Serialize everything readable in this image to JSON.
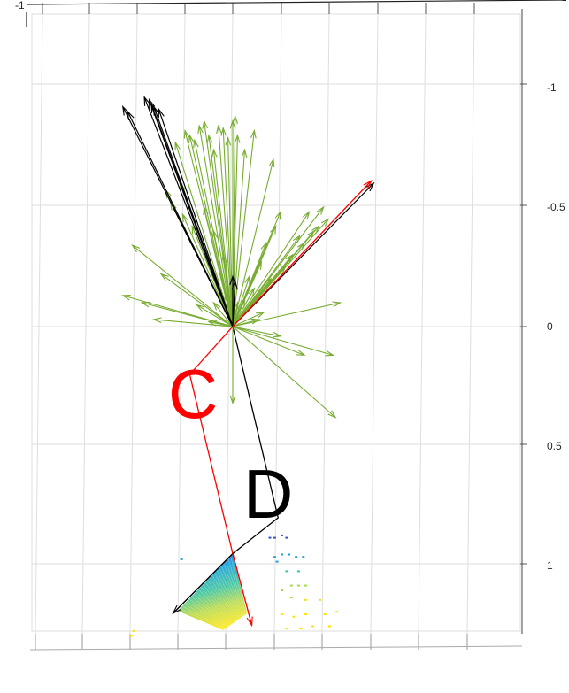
{
  "chart_data": {
    "type": "scatter",
    "subtype": "3d-quiver-with-point-cloud",
    "title": "",
    "xlabel": "",
    "ylabel": "",
    "y_ticks": [
      {
        "value": -1,
        "label": "-1"
      },
      {
        "value": -0.5,
        "label": "-0.5"
      },
      {
        "value": 0,
        "label": "0"
      },
      {
        "value": 0.5,
        "label": "0.5"
      },
      {
        "value": 1,
        "label": "1"
      }
    ],
    "corner_tick_label": "-1",
    "grid": true,
    "annotations": [
      {
        "text": "C",
        "color": "#ff0000"
      },
      {
        "text": "D",
        "color": "#000000"
      }
    ],
    "colors": {
      "normals": "#77ac30",
      "axis_red": "#ff0000",
      "axis_black": "#000000",
      "grid": "#dedede",
      "cloud_gradient": [
        "#3a4fc0",
        "#1ea0d8",
        "#35c6a0",
        "#a8d84a",
        "#f0e030",
        "#ffe600"
      ]
    },
    "origin": {
      "x": 0,
      "y": 0
    },
    "normals": [
      {
        "x": -0.26,
        "y": -0.52
      },
      {
        "x": -0.22,
        "y": -0.6
      },
      {
        "x": -0.24,
        "y": -0.77
      },
      {
        "x": -0.2,
        "y": -0.82
      },
      {
        "x": -0.18,
        "y": -0.8
      },
      {
        "x": -0.16,
        "y": -0.78
      },
      {
        "x": -0.14,
        "y": -0.84
      },
      {
        "x": -0.12,
        "y": -0.86
      },
      {
        "x": -0.1,
        "y": -0.8
      },
      {
        "x": -0.08,
        "y": -0.74
      },
      {
        "x": -0.06,
        "y": -0.84
      },
      {
        "x": -0.04,
        "y": -0.83
      },
      {
        "x": -0.02,
        "y": -0.79
      },
      {
        "x": 0.0,
        "y": -0.86
      },
      {
        "x": 0.01,
        "y": -0.88
      },
      {
        "x": 0.02,
        "y": -0.8
      },
      {
        "x": 0.05,
        "y": -0.74
      },
      {
        "x": 0.09,
        "y": -0.82
      },
      {
        "x": 0.17,
        "y": -0.7
      },
      {
        "x": -0.28,
        "y": -0.57
      },
      {
        "x": -0.21,
        "y": -0.47
      },
      {
        "x": -0.17,
        "y": -0.42
      },
      {
        "x": -0.12,
        "y": -0.5
      },
      {
        "x": -0.08,
        "y": -0.4
      },
      {
        "x": -0.04,
        "y": -0.3
      },
      {
        "x": -0.42,
        "y": -0.34
      },
      {
        "x": -0.3,
        "y": -0.22
      },
      {
        "x": -0.38,
        "y": -0.1
      },
      {
        "x": -0.46,
        "y": -0.13
      },
      {
        "x": -0.33,
        "y": -0.03
      },
      {
        "x": -0.15,
        "y": -0.09
      },
      {
        "x": -0.1,
        "y": -0.02
      },
      {
        "x": -0.08,
        "y": -0.1
      },
      {
        "x": -0.03,
        "y": -0.14
      },
      {
        "x": -0.01,
        "y": -0.08
      },
      {
        "x": 0.02,
        "y": -0.1
      },
      {
        "x": 0.05,
        "y": -0.11
      },
      {
        "x": 0.09,
        "y": -0.16
      },
      {
        "x": 0.07,
        "y": -0.21
      },
      {
        "x": 0.13,
        "y": -0.06
      },
      {
        "x": 0.11,
        "y": -0.03
      },
      {
        "x": 0.0,
        "y": 0.32
      },
      {
        "x": 0.3,
        "y": 0.12
      },
      {
        "x": 0.43,
        "y": 0.38
      },
      {
        "x": 0.2,
        "y": 0.04
      },
      {
        "x": 0.42,
        "y": 0.12
      },
      {
        "x": 0.45,
        "y": -0.1
      },
      {
        "x": 0.4,
        "y": -0.45
      },
      {
        "x": 0.38,
        "y": -0.5
      },
      {
        "x": 0.36,
        "y": -0.42
      },
      {
        "x": 0.32,
        "y": -0.48
      },
      {
        "x": 0.34,
        "y": -0.4
      },
      {
        "x": 0.3,
        "y": -0.35
      },
      {
        "x": 0.28,
        "y": -0.38
      },
      {
        "x": 0.25,
        "y": -0.3
      },
      {
        "x": 0.22,
        "y": -0.25
      },
      {
        "x": 0.16,
        "y": -0.2
      },
      {
        "x": 0.2,
        "y": -0.48
      },
      {
        "x": 0.18,
        "y": -0.42
      },
      {
        "x": 0.14,
        "y": -0.35
      },
      {
        "x": 0.12,
        "y": -0.27
      }
    ],
    "axis_vectors": [
      {
        "color": "black",
        "x": -0.46,
        "y": -0.92
      },
      {
        "color": "black",
        "x": -0.44,
        "y": -0.9
      },
      {
        "color": "black",
        "x": -0.37,
        "y": -0.96
      },
      {
        "color": "black",
        "x": -0.35,
        "y": -0.95
      },
      {
        "color": "black",
        "x": -0.34,
        "y": -0.93
      },
      {
        "color": "black",
        "x": -0.33,
        "y": -0.92
      },
      {
        "color": "black",
        "x": -0.31,
        "y": -0.91
      },
      {
        "color": "black",
        "x": 0.0,
        "y": -0.21
      },
      {
        "color": "black",
        "x": 0.01,
        "y": -0.19
      },
      {
        "color": "black",
        "x": 0.59,
        "y": -0.6
      },
      {
        "color": "red",
        "x": 0.58,
        "y": -0.61
      }
    ],
    "frame_C": [
      {
        "x": 0.0,
        "y": 0.0
      },
      {
        "x": -0.18,
        "y": 0.2
      },
      {
        "x": 0.0,
        "y": 0.95
      }
    ],
    "frame_D": [
      {
        "x": 0.0,
        "y": 0.0
      },
      {
        "x": 0.19,
        "y": 0.8
      },
      {
        "x": 0.0,
        "y": 0.95
      }
    ],
    "cloud_axes": [
      {
        "color": "black",
        "x1": 0.0,
        "y1": 0.95,
        "x2": -0.25,
        "y2": 1.2
      },
      {
        "color": "red",
        "x1": 0.0,
        "y1": 0.95,
        "x2": 0.08,
        "y2": 1.25
      }
    ],
    "point_cloud_patch": {
      "corners": [
        {
          "x": 0.0,
          "y": 0.95
        },
        {
          "x": 0.06,
          "y": 1.2
        },
        {
          "x": -0.04,
          "y": 1.27
        },
        {
          "x": -0.23,
          "y": 1.19
        }
      ]
    },
    "scattered_points": [
      {
        "x": 0.15,
        "y": 0.88
      },
      {
        "x": 0.17,
        "y": 0.88
      },
      {
        "x": 0.2,
        "y": 0.87
      },
      {
        "x": 0.22,
        "y": 0.88
      },
      {
        "x": 0.2,
        "y": 0.95
      },
      {
        "x": 0.23,
        "y": 0.95
      },
      {
        "x": 0.26,
        "y": 0.96
      },
      {
        "x": 0.29,
        "y": 0.96
      },
      {
        "x": 0.17,
        "y": 0.96
      },
      {
        "x": 0.18,
        "y": 0.98
      },
      {
        "x": 0.22,
        "y": 1.02
      },
      {
        "x": 0.27,
        "y": 1.02
      },
      {
        "x": 0.24,
        "y": 1.08
      },
      {
        "x": 0.27,
        "y": 1.08
      },
      {
        "x": 0.3,
        "y": 1.08
      },
      {
        "x": 0.2,
        "y": 1.1
      },
      {
        "x": 0.24,
        "y": 1.13
      },
      {
        "x": 0.3,
        "y": 1.14
      },
      {
        "x": 0.36,
        "y": 1.14
      },
      {
        "x": 0.2,
        "y": 1.2
      },
      {
        "x": 0.25,
        "y": 1.21
      },
      {
        "x": 0.3,
        "y": 1.2
      },
      {
        "x": 0.38,
        "y": 1.2
      },
      {
        "x": 0.43,
        "y": 1.19
      },
      {
        "x": 0.22,
        "y": 1.26
      },
      {
        "x": 0.28,
        "y": 1.26
      },
      {
        "x": 0.33,
        "y": 1.25
      },
      {
        "x": 0.4,
        "y": 1.25
      },
      {
        "x": -0.42,
        "y": 1.27
      },
      {
        "x": -0.43,
        "y": 1.29
      },
      {
        "x": -0.22,
        "y": 0.97
      }
    ]
  }
}
